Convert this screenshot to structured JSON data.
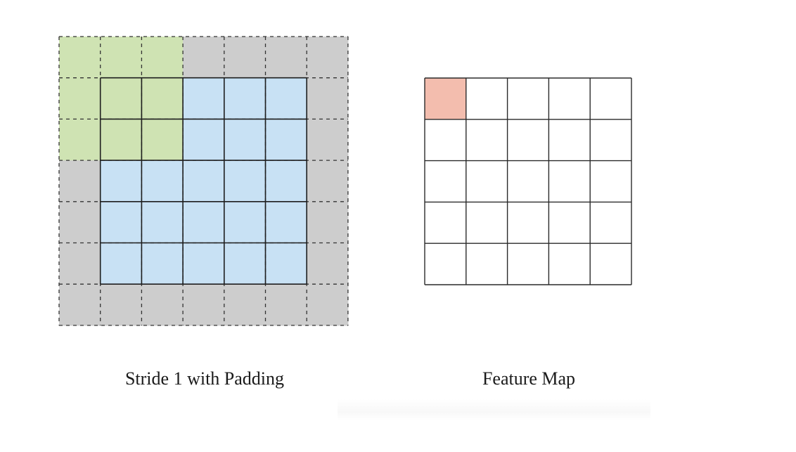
{
  "padded_input": {
    "caption": "Stride 1 with Padding",
    "grid_size": 7,
    "padding": 1,
    "kernel_size": 3,
    "stride": 1,
    "kernel_position": [
      0,
      0
    ],
    "colors": {
      "padding": "#cdcdcd",
      "input": "#c8e1f4",
      "kernel": "#cfe3b3",
      "inner_line": "#1e1e1e",
      "padding_line": "#333333"
    }
  },
  "feature_map": {
    "caption": "Feature Map",
    "grid_size": 5,
    "highlighted_cell": [
      0,
      0
    ],
    "colors": {
      "cell": "#ffffff",
      "highlight": "#f3bdae",
      "line": "#2a2a2a"
    }
  }
}
